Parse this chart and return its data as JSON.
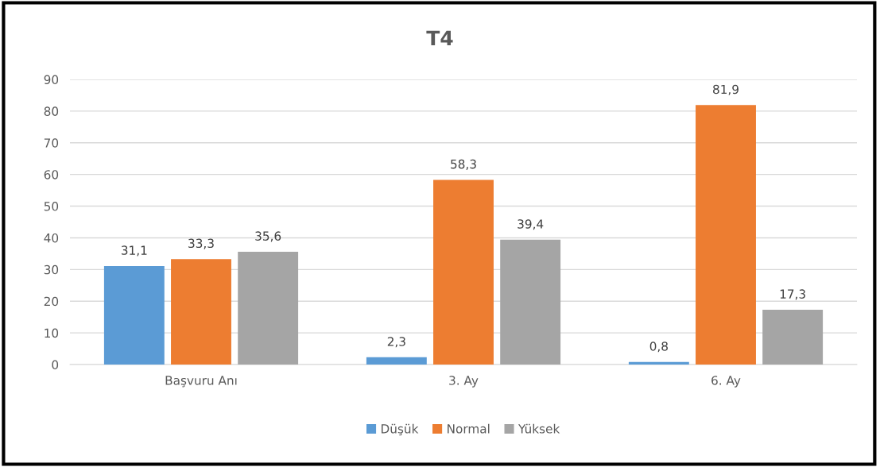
{
  "chart_data": {
    "type": "bar",
    "title": "T4",
    "categories": [
      "Başvuru Anı",
      "3. Ay",
      "6. Ay"
    ],
    "series": [
      {
        "name": "Düşük",
        "color": "#5b9bd5",
        "values": [
          31.1,
          2.3,
          0.8
        ],
        "value_labels": [
          "31,1",
          "2,3",
          "0,8"
        ]
      },
      {
        "name": "Normal",
        "color": "#ed7d31",
        "values": [
          33.3,
          58.3,
          81.9
        ],
        "value_labels": [
          "33,3",
          "58,3",
          "81,9"
        ]
      },
      {
        "name": "Yüksek",
        "color": "#a5a5a5",
        "values": [
          35.6,
          39.4,
          17.3
        ],
        "value_labels": [
          "35,6",
          "39,4",
          "17,3"
        ]
      }
    ],
    "ylim": [
      0,
      90
    ],
    "yticks": [
      0,
      10,
      20,
      30,
      40,
      50,
      60,
      70,
      80,
      90
    ],
    "grid": "y",
    "legend": "bottom"
  }
}
